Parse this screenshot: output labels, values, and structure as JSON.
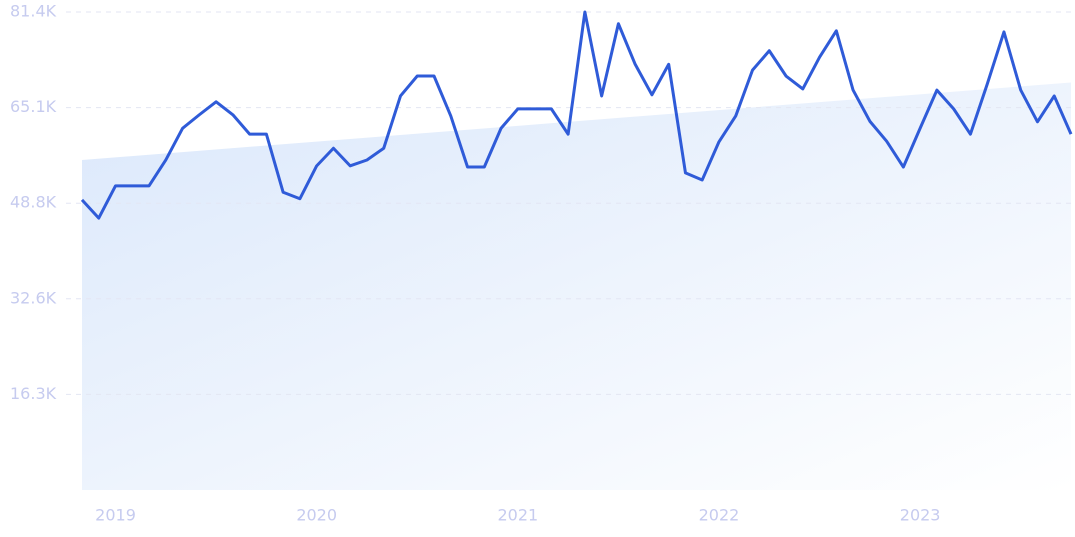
{
  "chart_data": {
    "type": "line",
    "categories": [
      null,
      null,
      "2019",
      null,
      null,
      null,
      null,
      null,
      null,
      null,
      null,
      null,
      null,
      null,
      "2020",
      null,
      null,
      null,
      null,
      null,
      null,
      null,
      null,
      null,
      null,
      null,
      "2021",
      null,
      null,
      null,
      null,
      null,
      null,
      null,
      null,
      null,
      null,
      null,
      "2022",
      null,
      null,
      null,
      null,
      null,
      null,
      null,
      null,
      null,
      null,
      null,
      "2023",
      null,
      null,
      null,
      null,
      null,
      null,
      null,
      null,
      null
    ],
    "series": [
      {
        "color": "#2f5bd8",
        "values": [
          49400,
          46300,
          51800,
          51800,
          51800,
          56200,
          61600,
          63900,
          66100,
          63900,
          60600,
          60600,
          50700,
          49600,
          55200,
          58200,
          55200,
          56200,
          58200,
          67100,
          70500,
          70500,
          63700,
          55000,
          55000,
          61600,
          64900,
          64900,
          64900,
          60600,
          81400,
          67100,
          79400,
          72500,
          67300,
          72500,
          54000,
          52800,
          59300,
          63700,
          71500,
          74800,
          70500,
          68300,
          73700,
          78200,
          68100,
          62800,
          59400,
          55000,
          61600,
          68100,
          64900,
          60600,
          69100,
          78000,
          68100,
          62700,
          67100,
          60600
        ]
      }
    ],
    "trend_values": [
      56200,
      69400
    ],
    "trend_color": "#dbe8fb",
    "ylim": [
      0,
      81400
    ],
    "yticks": [
      {
        "value": 16280,
        "label": "16.3K"
      },
      {
        "value": 32560,
        "label": "32.6K"
      },
      {
        "value": 48840,
        "label": "48.8K"
      },
      {
        "value": 65120,
        "label": "65.1K"
      },
      {
        "value": 81400,
        "label": "81.4K"
      }
    ],
    "grid": true
  }
}
